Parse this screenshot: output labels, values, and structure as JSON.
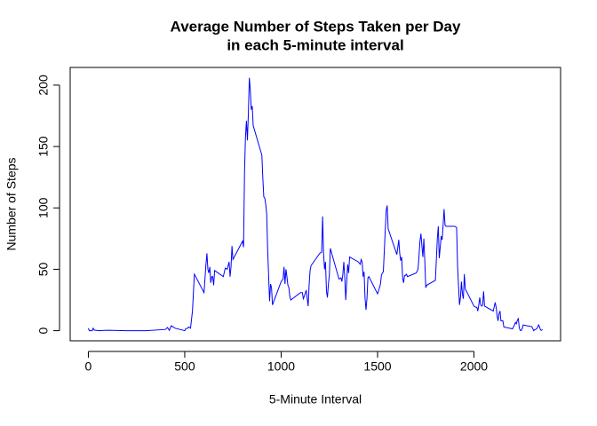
{
  "chart_data": {
    "type": "line",
    "title": [
      "Average Number of Steps Taken per Day",
      "in each 5-minute interval"
    ],
    "x_label": "5-Minute Interval",
    "y_label": "Number of Steps",
    "xlim": [
      -94.2,
      2449.2
    ],
    "ylim": [
      -8.25,
      214.4
    ],
    "xticks": [
      0,
      500,
      1000,
      1500,
      2000
    ],
    "yticks": [
      0,
      50,
      100,
      150,
      200
    ],
    "grid": false,
    "series": [
      {
        "color": "#0000ff",
        "x": [
          0,
          5,
          10,
          20,
          25,
          30,
          55,
          100,
          200,
          300,
          400,
          410,
          420,
          430,
          440,
          450,
          500,
          505,
          515,
          520,
          530,
          540,
          550,
          600,
          610,
          615,
          620,
          625,
          630,
          635,
          640,
          645,
          650,
          655,
          700,
          710,
          720,
          730,
          735,
          740,
          745,
          750,
          800,
          805,
          810,
          815,
          820,
          825,
          830,
          835,
          840,
          845,
          850,
          855,
          900,
          905,
          910,
          915,
          920,
          925,
          930,
          935,
          940,
          945,
          950,
          955,
          1000,
          1010,
          1015,
          1020,
          1025,
          1030,
          1035,
          1040,
          1045,
          1050,
          1100,
          1110,
          1115,
          1120,
          1130,
          1140,
          1145,
          1150,
          1155,
          1200,
          1210,
          1215,
          1220,
          1225,
          1230,
          1235,
          1240,
          1245,
          1250,
          1255,
          1300,
          1310,
          1315,
          1320,
          1325,
          1330,
          1335,
          1340,
          1345,
          1350,
          1355,
          1400,
          1410,
          1415,
          1420,
          1425,
          1430,
          1435,
          1440,
          1445,
          1450,
          1455,
          1500,
          1510,
          1515,
          1520,
          1525,
          1530,
          1535,
          1540,
          1545,
          1550,
          1555,
          1600,
          1610,
          1615,
          1620,
          1625,
          1630,
          1635,
          1640,
          1645,
          1650,
          1655,
          1700,
          1710,
          1715,
          1720,
          1725,
          1730,
          1735,
          1740,
          1745,
          1750,
          1755,
          1800,
          1810,
          1815,
          1820,
          1825,
          1830,
          1835,
          1840,
          1845,
          1850,
          1855,
          1900,
          1910,
          1915,
          1920,
          1925,
          1930,
          1935,
          1940,
          1945,
          1950,
          1955,
          2000,
          2010,
          2015,
          2020,
          2025,
          2030,
          2035,
          2040,
          2045,
          2050,
          2055,
          2100,
          2110,
          2115,
          2120,
          2125,
          2130,
          2135,
          2140,
          2145,
          2150,
          2155,
          2200,
          2210,
          2215,
          2220,
          2225,
          2230,
          2235,
          2240,
          2245,
          2250,
          2255,
          2300,
          2310,
          2315,
          2320,
          2325,
          2330,
          2335,
          2340,
          2345,
          2350,
          2355
        ],
        "values": [
          2,
          0,
          0,
          0,
          2,
          0.5,
          0,
          0.3,
          0,
          0,
          1,
          2.6,
          0.3,
          4,
          3,
          2,
          0,
          1.6,
          2,
          3,
          2,
          16,
          46,
          31,
          54,
          63,
          50,
          47,
          52,
          39,
          44,
          44,
          37,
          49,
          44,
          51,
          50,
          56,
          44,
          52,
          69,
          58,
          73,
          68,
          129,
          158,
          171,
          155,
          177,
          206,
          196,
          180,
          183,
          167,
          143,
          124,
          109,
          108,
          103,
          95,
          66,
          45,
          24,
          38,
          35,
          21,
          40,
          42,
          52,
          38,
          50,
          44,
          37,
          35,
          28,
          25,
          31,
          31,
          26,
          28,
          33,
          20,
          37,
          49,
          53,
          63,
          64,
          93,
          63,
          50,
          56,
          32,
          27,
          38,
          45,
          67,
          42,
          43,
          40,
          46,
          56,
          43,
          25,
          40,
          54,
          47,
          60,
          56,
          54,
          58,
          56,
          44,
          48,
          27,
          17,
          26,
          43,
          44,
          30,
          35,
          38,
          45,
          47,
          48,
          65,
          82,
          98,
          102,
          83,
          62,
          74,
          63,
          57,
          60,
          43,
          39,
          45,
          45,
          46,
          44,
          47,
          50,
          61,
          73,
          79,
          69,
          60,
          75,
          57,
          35,
          37,
          41,
          75,
          85,
          59,
          68,
          77,
          74,
          86,
          99,
          86,
          85,
          85,
          84,
          53,
          36,
          21,
          27,
          40,
          30,
          26,
          46,
          34,
          20,
          19,
          19,
          16,
          21,
          27,
          21,
          20,
          21,
          32,
          20,
          16,
          23,
          19,
          12,
          8,
          14,
          16,
          8,
          8,
          8,
          3,
          1.5,
          4.6,
          6.7,
          5.6,
          8.5,
          9.8,
          2.2,
          0.3,
          0.1,
          1.6,
          4.6,
          3.3,
          0,
          0.8,
          1,
          1.6,
          2.6,
          4.7,
          3.3,
          0.6,
          0.2,
          1.1
        ]
      }
    ]
  }
}
